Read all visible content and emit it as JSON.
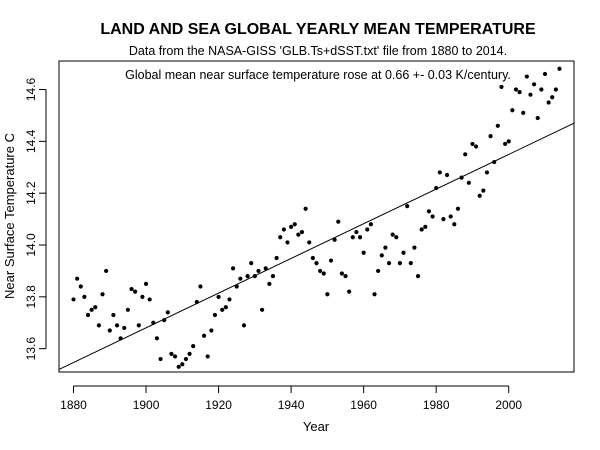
{
  "chart_data": {
    "type": "scatter",
    "title": "LAND AND SEA GLOBAL YEARLY MEAN TEMPERATURE",
    "subtitle": "Data from the NASA-GISS 'GLB.Ts+dSST.txt' file from 1880 to 2014.",
    "annotation": "Global mean near surface temperature rose at 0.66 +- 0.03 K/century.",
    "xlabel": "Year",
    "ylabel": "Near Surface Temperature C",
    "xlim": [
      1876,
      2018
    ],
    "ylim": [
      13.51,
      14.71
    ],
    "xticks": [
      1880,
      1900,
      1920,
      1940,
      1960,
      1980,
      2000
    ],
    "yticks": [
      13.6,
      13.8,
      14.0,
      14.2,
      14.4,
      14.6
    ],
    "grid": false,
    "legend": "none",
    "trend_line": {
      "x": [
        1876,
        2018
      ],
      "y": [
        13.52,
        14.47
      ]
    },
    "series": [
      {
        "x": [
          1880,
          1881,
          1882,
          1883,
          1884,
          1885,
          1886,
          1887,
          1888,
          1889,
          1890,
          1891,
          1892,
          1893,
          1894,
          1895,
          1896,
          1897,
          1898,
          1899,
          1900,
          1901,
          1902,
          1903,
          1904,
          1905,
          1906,
          1907,
          1908,
          1909,
          1910,
          1911,
          1912,
          1913,
          1914,
          1915,
          1916,
          1917,
          1918,
          1919,
          1920,
          1921,
          1922,
          1923,
          1924,
          1925,
          1926,
          1927,
          1928,
          1929,
          1930,
          1931,
          1932,
          1933,
          1934,
          1935,
          1936,
          1937,
          1938,
          1939,
          1940,
          1941,
          1942,
          1943,
          1944,
          1945,
          1946,
          1947,
          1948,
          1949,
          1950,
          1951,
          1952,
          1953,
          1954,
          1955,
          1956,
          1957,
          1958,
          1959,
          1960,
          1961,
          1962,
          1963,
          1964,
          1965,
          1966,
          1967,
          1968,
          1969,
          1970,
          1971,
          1972,
          1973,
          1974,
          1975,
          1976,
          1977,
          1978,
          1979,
          1980,
          1981,
          1982,
          1983,
          1984,
          1985,
          1986,
          1987,
          1988,
          1989,
          1990,
          1991,
          1992,
          1993,
          1994,
          1995,
          1996,
          1997,
          1998,
          1999,
          2000,
          2001,
          2002,
          2003,
          2004,
          2005,
          2006,
          2007,
          2008,
          2009,
          2010,
          2011,
          2012,
          2013,
          2014
        ],
        "y": [
          13.79,
          13.87,
          13.84,
          13.8,
          13.73,
          13.75,
          13.76,
          13.69,
          13.81,
          13.9,
          13.67,
          13.73,
          13.69,
          13.64,
          13.68,
          13.75,
          13.83,
          13.82,
          13.69,
          13.8,
          13.85,
          13.79,
          13.7,
          13.64,
          13.56,
          13.71,
          13.74,
          13.58,
          13.57,
          13.53,
          13.54,
          13.56,
          13.58,
          13.61,
          13.78,
          13.84,
          13.65,
          13.57,
          13.67,
          13.73,
          13.8,
          13.75,
          13.76,
          13.79,
          13.91,
          13.84,
          13.87,
          13.69,
          13.88,
          13.93,
          13.88,
          13.9,
          13.75,
          13.91,
          13.85,
          13.88,
          13.95,
          14.03,
          14.06,
          14.01,
          14.07,
          14.08,
          14.04,
          14.05,
          14.14,
          14.01,
          13.95,
          13.93,
          13.9,
          13.89,
          13.81,
          13.94,
          14.02,
          14.09,
          13.89,
          13.88,
          13.82,
          14.03,
          14.05,
          14.03,
          13.97,
          14.06,
          14.08,
          13.81,
          13.9,
          13.96,
          13.99,
          13.93,
          14.04,
          14.03,
          13.93,
          13.97,
          14.15,
          13.93,
          13.99,
          13.88,
          14.06,
          14.07,
          14.13,
          14.11,
          14.22,
          14.28,
          14.1,
          14.27,
          14.11,
          14.08,
          14.14,
          14.26,
          14.35,
          14.24,
          14.39,
          14.38,
          14.19,
          14.21,
          14.28,
          14.42,
          14.32,
          14.46,
          14.61,
          14.39,
          14.4,
          14.52,
          14.6,
          14.59,
          14.51,
          14.65,
          14.58,
          14.62,
          14.49,
          14.6,
          14.66,
          14.55,
          14.57,
          14.6,
          14.68
        ]
      }
    ]
  }
}
